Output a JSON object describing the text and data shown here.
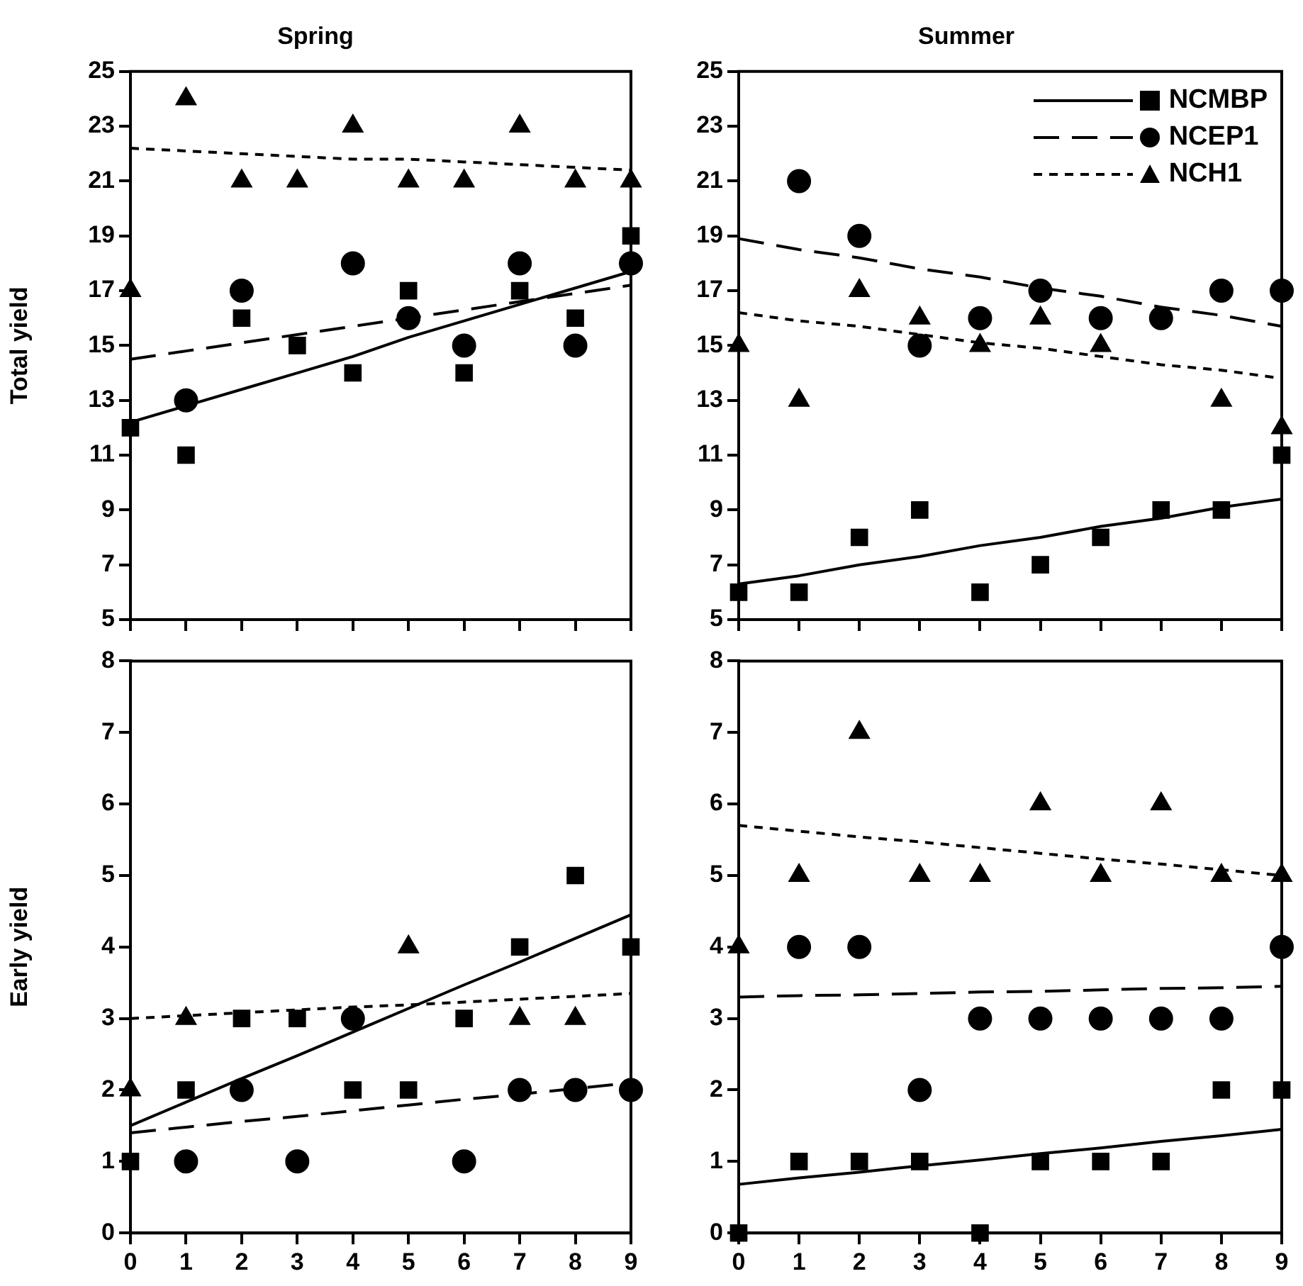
{
  "chart_data": [
    {
      "type": "scatter",
      "title": "Spring",
      "ylabel": "Total yield",
      "x": [
        0,
        1,
        2,
        3,
        4,
        5,
        6,
        7,
        8,
        9
      ],
      "xlim": [
        0,
        9
      ],
      "xticks": [
        0,
        1,
        2,
        3,
        4,
        5,
        6,
        7,
        8,
        9
      ],
      "ylim": [
        5,
        25
      ],
      "yticks": [
        5,
        7,
        9,
        11,
        13,
        15,
        17,
        19,
        21,
        23,
        25
      ],
      "tick_labels": "y",
      "series": [
        {
          "marker": "square",
          "color": "#000000",
          "values": [
            12,
            11,
            16,
            15,
            14,
            17,
            14,
            17,
            16,
            19
          ]
        },
        {
          "marker": "circle",
          "color": "#000000",
          "values": [
            null,
            13,
            17,
            null,
            18,
            16,
            15,
            18,
            15,
            18
          ]
        },
        {
          "marker": "triangle",
          "color": "#000000",
          "values": [
            17,
            24,
            21,
            21,
            23,
            21,
            21,
            23,
            21,
            21
          ]
        },
        {
          "type": "line",
          "line_style": "solid",
          "color": "#000000",
          "values": [
            12.2,
            12.8,
            13.4,
            14.0,
            14.6,
            15.3,
            15.9,
            16.5,
            17.1,
            17.7
          ]
        },
        {
          "type": "line",
          "line_style": "dashed",
          "color": "#000000",
          "values": [
            14.5,
            14.8,
            15.1,
            15.4,
            15.7,
            16.0,
            16.3,
            16.6,
            16.9,
            17.2
          ]
        },
        {
          "type": "line",
          "line_style": "dotted",
          "color": "#000000",
          "values": [
            22.2,
            22.1,
            22.0,
            21.9,
            21.8,
            21.8,
            21.7,
            21.6,
            21.5,
            21.4
          ]
        }
      ]
    },
    {
      "type": "scatter",
      "title": "Summer",
      "x": [
        0,
        1,
        2,
        3,
        4,
        5,
        6,
        7,
        8,
        9
      ],
      "xlim": [
        0,
        9
      ],
      "xticks": [
        0,
        1,
        2,
        3,
        4,
        5,
        6,
        7,
        8,
        9
      ],
      "ylim": [
        5,
        25
      ],
      "yticks": [
        5,
        7,
        9,
        11,
        13,
        15,
        17,
        19,
        21,
        23,
        25
      ],
      "tick_labels": "y",
      "legend": "top right",
      "series": [
        {
          "name": "NCMBP",
          "marker": "square",
          "color": "#000000",
          "values": [
            6,
            6,
            8,
            9,
            6,
            7,
            8,
            9,
            9,
            11
          ]
        },
        {
          "name": "NCEP1",
          "marker": "circle",
          "color": "#000000",
          "values": [
            null,
            21,
            19,
            15,
            16,
            17,
            16,
            16,
            17,
            17
          ]
        },
        {
          "name": "NCH1",
          "marker": "triangle",
          "color": "#000000",
          "values": [
            15,
            13,
            17,
            16,
            15,
            16,
            15,
            null,
            13,
            12
          ]
        },
        {
          "type": "line",
          "line_style": "solid",
          "color": "#000000",
          "values": [
            6.3,
            6.6,
            7.0,
            7.3,
            7.7,
            8.0,
            8.4,
            8.7,
            9.1,
            9.4
          ]
        },
        {
          "type": "line",
          "line_style": "dashed",
          "color": "#000000",
          "values": [
            18.9,
            18.5,
            18.2,
            17.8,
            17.5,
            17.1,
            16.8,
            16.4,
            16.1,
            15.7
          ]
        },
        {
          "type": "line",
          "line_style": "dotted",
          "color": "#000000",
          "values": [
            16.2,
            15.9,
            15.7,
            15.4,
            15.1,
            14.9,
            14.6,
            14.3,
            14.1,
            13.8
          ]
        }
      ]
    },
    {
      "type": "scatter",
      "ylabel": "Early yield",
      "x": [
        0,
        1,
        2,
        3,
        4,
        5,
        6,
        7,
        8,
        9
      ],
      "xlim": [
        0,
        9
      ],
      "xticks": [
        0,
        1,
        2,
        3,
        4,
        5,
        6,
        7,
        8,
        9
      ],
      "ylim": [
        0,
        8
      ],
      "yticks": [
        0,
        1,
        2,
        3,
        4,
        5,
        6,
        7,
        8
      ],
      "series": [
        {
          "marker": "square",
          "color": "#000000",
          "values": [
            1,
            2,
            3,
            3,
            2,
            2,
            3,
            4,
            5,
            4
          ]
        },
        {
          "marker": "circle",
          "color": "#000000",
          "values": [
            null,
            1,
            2,
            1,
            3,
            null,
            1,
            2,
            2,
            2
          ]
        },
        {
          "marker": "triangle",
          "color": "#000000",
          "values": [
            2,
            3,
            null,
            null,
            null,
            4,
            null,
            3,
            3,
            null
          ]
        },
        {
          "type": "line",
          "line_style": "solid",
          "color": "#000000",
          "values": [
            1.5,
            1.83,
            2.16,
            2.48,
            2.81,
            3.14,
            3.47,
            3.79,
            4.12,
            4.45
          ]
        },
        {
          "type": "line",
          "line_style": "dashed",
          "color": "#000000",
          "values": [
            1.4,
            1.48,
            1.56,
            1.63,
            1.71,
            1.79,
            1.87,
            1.94,
            2.02,
            2.1
          ]
        },
        {
          "type": "line",
          "line_style": "dotted",
          "color": "#000000",
          "values": [
            3.0,
            3.04,
            3.08,
            3.12,
            3.16,
            3.19,
            3.23,
            3.27,
            3.31,
            3.35
          ]
        }
      ]
    },
    {
      "type": "scatter",
      "x": [
        0,
        1,
        2,
        3,
        4,
        5,
        6,
        7,
        8,
        9
      ],
      "xlim": [
        0,
        9
      ],
      "xticks": [
        0,
        1,
        2,
        3,
        4,
        5,
        6,
        7,
        8,
        9
      ],
      "ylim": [
        0,
        8
      ],
      "yticks": [
        0,
        1,
        2,
        3,
        4,
        5,
        6,
        7,
        8
      ],
      "series": [
        {
          "marker": "square",
          "color": "#000000",
          "values": [
            0,
            1,
            1,
            1,
            0,
            1,
            1,
            1,
            2,
            2
          ]
        },
        {
          "marker": "circle",
          "color": "#000000",
          "values": [
            null,
            4,
            4,
            2,
            3,
            3,
            3,
            3,
            3,
            4
          ]
        },
        {
          "marker": "triangle",
          "color": "#000000",
          "values": [
            4,
            5,
            7,
            5,
            5,
            6,
            5,
            6,
            5,
            5
          ]
        },
        {
          "type": "line",
          "line_style": "solid",
          "color": "#000000",
          "values": [
            0.68,
            0.77,
            0.85,
            0.94,
            1.02,
            1.11,
            1.19,
            1.28,
            1.36,
            1.45
          ]
        },
        {
          "type": "line",
          "line_style": "dashed",
          "color": "#000000",
          "values": [
            3.3,
            3.32,
            3.33,
            3.35,
            3.37,
            3.38,
            3.4,
            3.42,
            3.43,
            3.45
          ]
        },
        {
          "type": "line",
          "line_style": "dotted",
          "color": "#000000",
          "values": [
            5.7,
            5.62,
            5.54,
            5.47,
            5.39,
            5.31,
            5.23,
            5.16,
            5.08,
            5.0
          ]
        }
      ]
    }
  ]
}
